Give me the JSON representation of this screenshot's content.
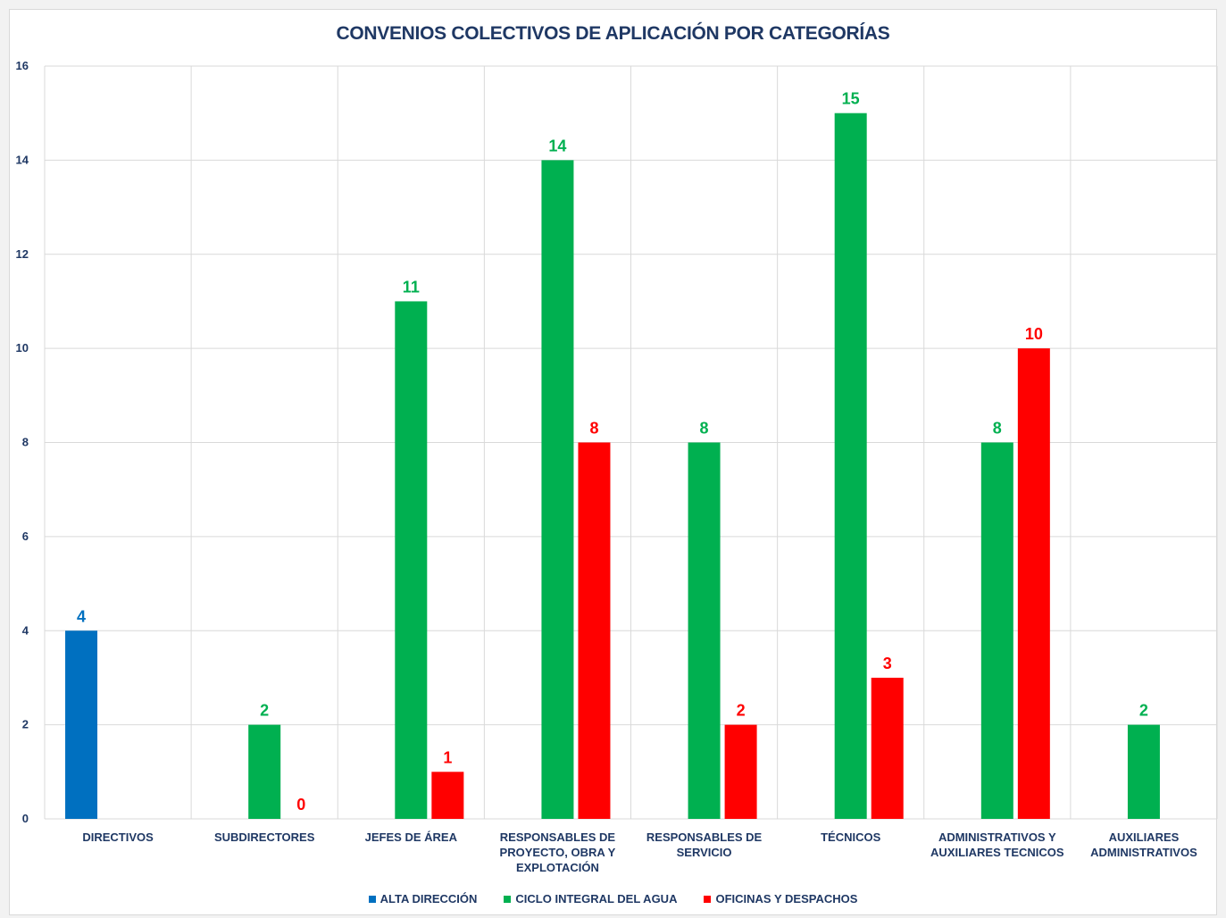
{
  "chart_data": {
    "type": "bar",
    "title": "CONVENIOS COLECTIVOS DE APLICACIÓN POR CATEGORÍAS",
    "xlabel": "",
    "ylabel": "",
    "ylim": [
      0,
      16
    ],
    "yticks": [
      "0",
      "2",
      "4",
      "6",
      "8",
      "10",
      "12",
      "14",
      "16"
    ],
    "grid": true,
    "legend_position": "bottom",
    "categories": [
      [
        "DIRECTIVOS"
      ],
      [
        "SUBDIRECTORES"
      ],
      [
        "JEFES DE ÁREA"
      ],
      [
        "RESPONSABLES DE",
        "PROYECTO, OBRA Y",
        "EXPLOTACIÓN"
      ],
      [
        "RESPONSABLES DE",
        "SERVICIO"
      ],
      [
        "TÉCNICOS"
      ],
      [
        "ADMINISTRATIVOS Y",
        "AUXILIARES TECNICOS"
      ],
      [
        "AUXILIARES",
        "ADMINISTRATIVOS"
      ]
    ],
    "series": [
      {
        "name": "ALTA DIRECCIÓN",
        "color": "#0070c0",
        "values": [
          4,
          null,
          null,
          null,
          null,
          null,
          null,
          null
        ]
      },
      {
        "name": "CICLO INTEGRAL DEL AGUA",
        "color": "#00b050",
        "values": [
          null,
          2,
          11,
          14,
          8,
          15,
          8,
          2
        ]
      },
      {
        "name": "OFICINAS Y DESPACHOS",
        "color": "#ff0000",
        "values": [
          null,
          0,
          1,
          8,
          2,
          3,
          10,
          null
        ]
      }
    ]
  }
}
